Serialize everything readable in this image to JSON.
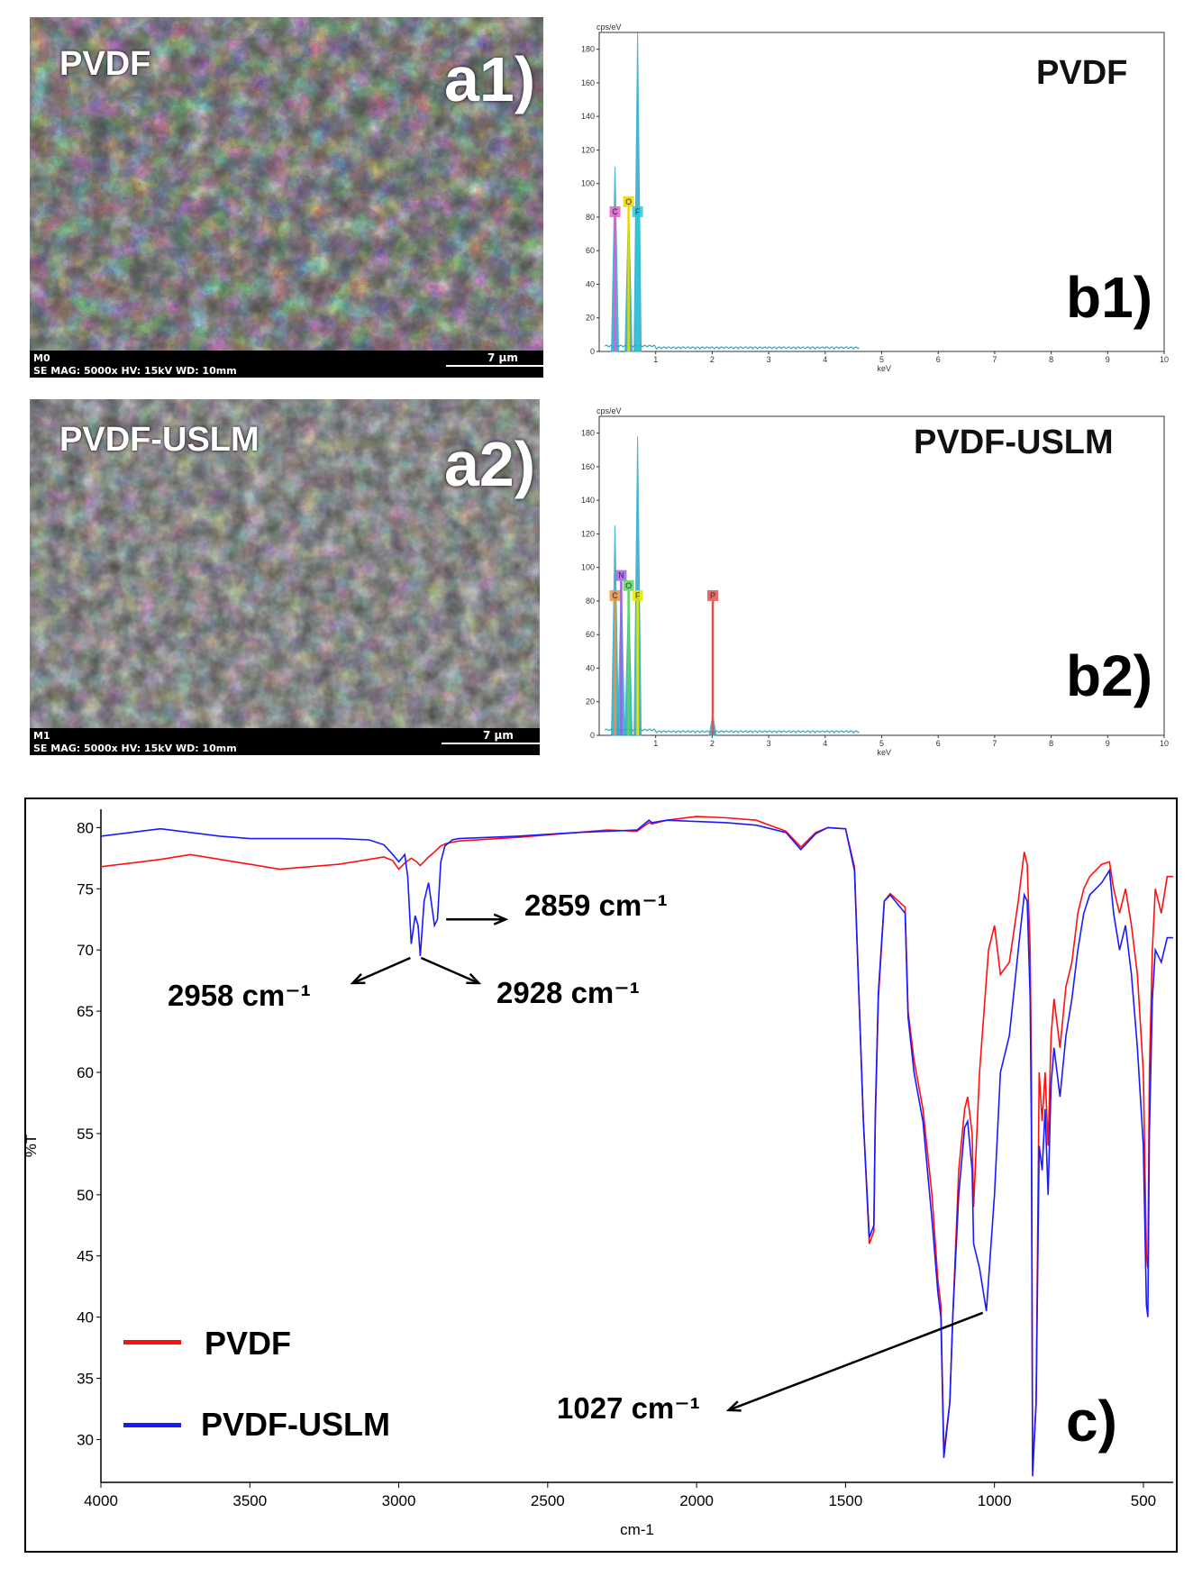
{
  "colors": {
    "pvdf": "#ff1010",
    "uslm": "#1a1aff",
    "eds_main": "#29a9c9"
  },
  "sem": [
    {
      "sample": "PVDF",
      "panel": "a1)",
      "info_line1": "M0",
      "info_line2": "SE  MAG: 5000x  HV: 15kV  WD: 10mm",
      "scale": "7 µm"
    },
    {
      "sample": "PVDF-USLM",
      "panel": "a2)",
      "info_line1": "M1",
      "info_line2": "SE  MAG: 5000x  HV: 15kV  WD: 10mm",
      "scale": "7 µm"
    }
  ],
  "chart_data": [
    {
      "id": "b1",
      "type": "line",
      "title": "PVDF",
      "panel": "b1)",
      "ylabel": "cps/eV",
      "xlabel": "keV",
      "xlim": [
        0,
        10
      ],
      "ylim": [
        0,
        190
      ],
      "yticks": [
        0,
        20,
        40,
        60,
        80,
        100,
        120,
        140,
        160,
        180
      ],
      "xticks": [
        1,
        2,
        3,
        4,
        5,
        6,
        7,
        8,
        9,
        10
      ],
      "peaks": [
        {
          "element": "C",
          "kev": 0.28,
          "height": 110,
          "marker_y": 80,
          "color": "#e85ad6"
        },
        {
          "element": "O",
          "kev": 0.52,
          "height": 88,
          "marker_y": 86,
          "color": "#e6d800"
        },
        {
          "element": "F",
          "kev": 0.68,
          "height": 190,
          "marker_y": 80,
          "color": "#29c9d9"
        }
      ]
    },
    {
      "id": "b2",
      "type": "line",
      "title": "PVDF-USLM",
      "panel": "b2)",
      "ylabel": "cps/eV",
      "xlabel": "keV",
      "xlim": [
        0,
        10
      ],
      "ylim": [
        0,
        190
      ],
      "yticks": [
        0,
        20,
        40,
        60,
        80,
        100,
        120,
        140,
        160,
        180
      ],
      "xticks": [
        1,
        2,
        3,
        4,
        5,
        6,
        7,
        8,
        9,
        10
      ],
      "peaks": [
        {
          "element": "C",
          "kev": 0.28,
          "height": 125,
          "marker_y": 80,
          "color": "#f0903c"
        },
        {
          "element": "N",
          "kev": 0.39,
          "height": 92,
          "marker_y": 92,
          "color": "#a060e0"
        },
        {
          "element": "O",
          "kev": 0.52,
          "height": 86,
          "marker_y": 86,
          "color": "#5cd65c"
        },
        {
          "element": "F",
          "kev": 0.68,
          "height": 178,
          "marker_y": 80,
          "color": "#e6e600"
        },
        {
          "element": "P",
          "kev": 2.01,
          "height": 12,
          "marker_y": 80,
          "color": "#e05050"
        }
      ]
    },
    {
      "id": "c",
      "type": "line",
      "panel": "c)",
      "xlabel": "cm-1",
      "ylabel": "%T",
      "xlim": [
        4000,
        400
      ],
      "ylim": [
        26.5,
        81.5
      ],
      "xticks": [
        4000,
        3500,
        3000,
        2500,
        2000,
        1500,
        1000,
        500
      ],
      "yticks": [
        30,
        35,
        40,
        45,
        50,
        55,
        60,
        65,
        70,
        75,
        80
      ],
      "legend": [
        "PVDF",
        "PVDF-USLM"
      ],
      "series": [
        {
          "name": "PVDF",
          "x": [
            4000,
            3900,
            3800,
            3700,
            3600,
            3500,
            3400,
            3300,
            3200,
            3100,
            3050,
            3020,
            3000,
            2980,
            2958,
            2940,
            2928,
            2900,
            2880,
            2859,
            2840,
            2800,
            2600,
            2400,
            2300,
            2200,
            2160,
            2150,
            2100,
            2000,
            1900,
            1800,
            1700,
            1650,
            1600,
            1560,
            1500,
            1470,
            1440,
            1420,
            1405,
            1400,
            1390,
            1370,
            1350,
            1300,
            1290,
            1270,
            1240,
            1210,
            1190,
            1180,
            1170,
            1150,
            1140,
            1120,
            1100,
            1090,
            1075,
            1070,
            1050,
            1020,
            1000,
            980,
            950,
            920,
            900,
            890,
            880,
            876,
            872,
            860,
            850,
            840,
            830,
            820,
            810,
            800,
            780,
            760,
            740,
            720,
            700,
            680,
            660,
            640,
            614,
            600,
            580,
            560,
            540,
            520,
            500,
            490,
            485,
            480,
            470,
            460,
            440,
            420,
            400
          ],
          "y": [
            76.8,
            77.1,
            77.4,
            77.8,
            77.4,
            77.0,
            76.6,
            76.8,
            77.0,
            77.4,
            77.6,
            77.3,
            76.6,
            77.1,
            77.5,
            77.2,
            76.9,
            77.6,
            78.0,
            78.5,
            78.7,
            78.9,
            79.2,
            79.6,
            79.8,
            79.7,
            80.4,
            80.3,
            80.6,
            80.9,
            80.8,
            80.6,
            79.7,
            78.4,
            79.6,
            80.0,
            79.9,
            76.8,
            56.0,
            46.0,
            47.0,
            56.0,
            66.0,
            74.0,
            74.6,
            73.5,
            65.0,
            61.0,
            57.0,
            50.0,
            43.0,
            41.0,
            29.0,
            33.0,
            40.0,
            52.0,
            57.0,
            58.0,
            55.0,
            49.0,
            60.0,
            70.0,
            72.0,
            68.0,
            69.0,
            74.0,
            78.0,
            77.0,
            70.0,
            60.0,
            27.5,
            33.0,
            60.0,
            56.0,
            60.0,
            54.0,
            63.0,
            66.0,
            62.0,
            67.0,
            69.0,
            73.0,
            75.0,
            76.0,
            76.5,
            77.0,
            77.2,
            75.0,
            73.0,
            75.0,
            72.0,
            68.0,
            60.0,
            45.0,
            44.0,
            60.0,
            70.0,
            75.0,
            73.0,
            76.0,
            76.0
          ]
        },
        {
          "name": "PVDF-USLM",
          "x": [
            4000,
            3900,
            3800,
            3700,
            3600,
            3500,
            3400,
            3300,
            3200,
            3100,
            3050,
            3020,
            3000,
            2980,
            2970,
            2958,
            2945,
            2935,
            2928,
            2915,
            2900,
            2880,
            2870,
            2859,
            2845,
            2820,
            2800,
            2600,
            2400,
            2300,
            2200,
            2160,
            2150,
            2100,
            2000,
            1900,
            1800,
            1700,
            1650,
            1600,
            1560,
            1500,
            1470,
            1440,
            1420,
            1405,
            1400,
            1390,
            1370,
            1350,
            1300,
            1290,
            1270,
            1240,
            1210,
            1190,
            1180,
            1170,
            1150,
            1140,
            1120,
            1100,
            1090,
            1075,
            1070,
            1050,
            1027,
            1000,
            980,
            950,
            920,
            900,
            890,
            880,
            876,
            872,
            860,
            850,
            840,
            830,
            820,
            810,
            800,
            780,
            760,
            740,
            720,
            700,
            680,
            660,
            640,
            614,
            600,
            580,
            560,
            540,
            520,
            500,
            490,
            485,
            480,
            470,
            460,
            440,
            420,
            400
          ],
          "y": [
            79.3,
            79.6,
            79.9,
            79.6,
            79.3,
            79.1,
            79.1,
            79.1,
            79.1,
            79.0,
            78.6,
            77.8,
            77.2,
            77.8,
            76.0,
            70.5,
            72.8,
            72.0,
            69.5,
            74.0,
            75.5,
            72.0,
            72.5,
            77.2,
            78.5,
            79.0,
            79.1,
            79.3,
            79.6,
            79.7,
            79.8,
            80.6,
            80.4,
            80.6,
            80.5,
            80.4,
            80.2,
            79.6,
            78.2,
            79.5,
            80.0,
            79.9,
            76.5,
            56.0,
            46.5,
            47.5,
            56.5,
            66.5,
            74.0,
            74.5,
            73.0,
            64.5,
            60.0,
            56.0,
            48.0,
            42.0,
            40.0,
            28.5,
            33.0,
            40.0,
            50.0,
            55.5,
            56.0,
            52.0,
            46.0,
            44.0,
            40.5,
            50.0,
            60.0,
            63.0,
            70.0,
            74.5,
            74.0,
            66.0,
            55.0,
            27.0,
            33.0,
            54.0,
            52.0,
            57.0,
            50.0,
            59.0,
            62.0,
            58.0,
            63.0,
            66.0,
            70.0,
            73.0,
            74.5,
            75.0,
            75.5,
            76.5,
            73.0,
            70.0,
            72.0,
            68.0,
            62.0,
            54.0,
            41.0,
            40.0,
            55.0,
            66.0,
            70.0,
            69.0,
            71.0,
            71.0
          ]
        }
      ],
      "annotations": [
        {
          "text": "2859 cm⁻¹"
        },
        {
          "text": "2958 cm⁻¹"
        },
        {
          "text": "2928 cm⁻¹"
        },
        {
          "text": "1027 cm⁻¹"
        }
      ]
    }
  ]
}
